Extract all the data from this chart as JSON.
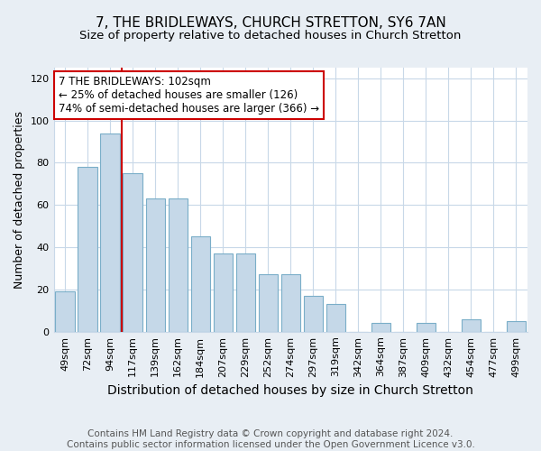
{
  "title": "7, THE BRIDLEWAYS, CHURCH STRETTON, SY6 7AN",
  "subtitle": "Size of property relative to detached houses in Church Stretton",
  "xlabel": "Distribution of detached houses by size in Church Stretton",
  "ylabel": "Number of detached properties",
  "categories": [
    "49sqm",
    "72sqm",
    "94sqm",
    "117sqm",
    "139sqm",
    "162sqm",
    "184sqm",
    "207sqm",
    "229sqm",
    "252sqm",
    "274sqm",
    "297sqm",
    "319sqm",
    "342sqm",
    "364sqm",
    "387sqm",
    "409sqm",
    "432sqm",
    "454sqm",
    "477sqm",
    "499sqm"
  ],
  "values": [
    19,
    78,
    94,
    75,
    63,
    63,
    45,
    37,
    37,
    27,
    27,
    17,
    13,
    0,
    4,
    0,
    4,
    0,
    6,
    0,
    5
  ],
  "bar_color": "#c5d8e8",
  "bar_edge_color": "#7aaec8",
  "annotation_text": "7 THE BRIDLEWAYS: 102sqm\n← 25% of detached houses are smaller (126)\n74% of semi-detached houses are larger (366) →",
  "annotation_box_color": "#ffffff",
  "annotation_box_edge_color": "#cc0000",
  "vline_color": "#cc0000",
  "ylim": [
    0,
    125
  ],
  "yticks": [
    0,
    20,
    40,
    60,
    80,
    100,
    120
  ],
  "footer_text": "Contains HM Land Registry data © Crown copyright and database right 2024.\nContains public sector information licensed under the Open Government Licence v3.0.",
  "background_color": "#e8eef4",
  "plot_background_color": "#ffffff",
  "grid_color": "#c8d8e8",
  "title_fontsize": 11,
  "subtitle_fontsize": 9.5,
  "xlabel_fontsize": 10,
  "ylabel_fontsize": 9,
  "footer_fontsize": 7.5,
  "tick_fontsize": 8
}
